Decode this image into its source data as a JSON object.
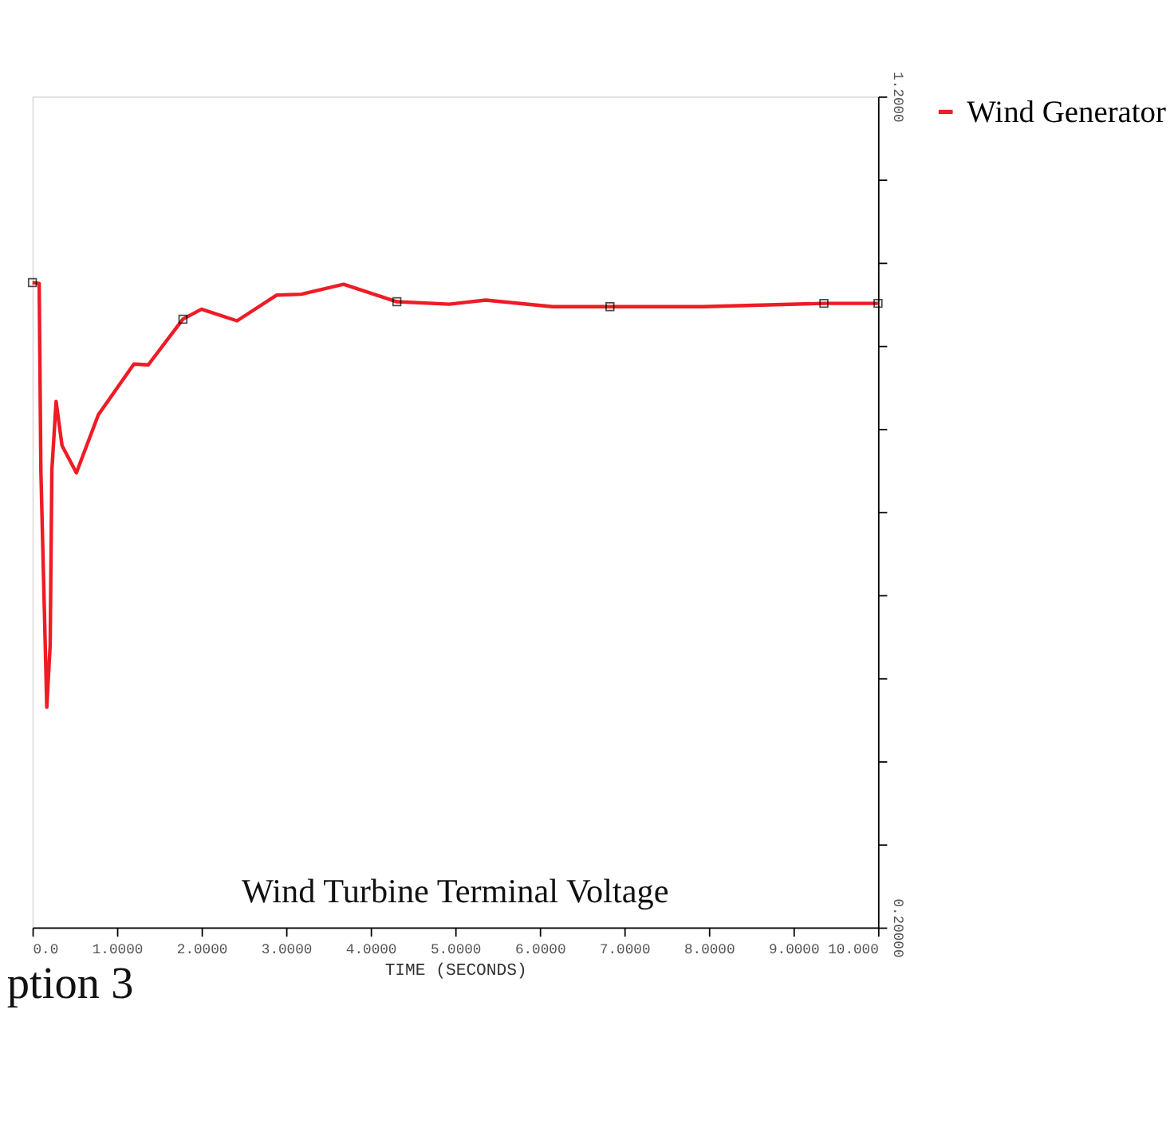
{
  "chart_data": {
    "type": "line",
    "title": "Wind Turbine Terminal Voltage",
    "xlabel": "TIME (SECONDS)",
    "annotations": [
      "ption 3"
    ],
    "xlim": [
      0,
      10
    ],
    "ylim": [
      0.2,
      1.2
    ],
    "xticks": [
      {
        "value": 0,
        "label": "0.0"
      },
      {
        "value": 1,
        "label": "1.0000"
      },
      {
        "value": 2,
        "label": "2.0000"
      },
      {
        "value": 3,
        "label": "3.0000"
      },
      {
        "value": 4,
        "label": "4.0000"
      },
      {
        "value": 5,
        "label": "5.0000"
      },
      {
        "value": 6,
        "label": "6.0000"
      },
      {
        "value": 7,
        "label": "7.0000"
      },
      {
        "value": 8,
        "label": "8.0000"
      },
      {
        "value": 9,
        "label": "9.0000"
      },
      {
        "value": 10,
        "label": "10.000"
      }
    ],
    "yticks": [
      {
        "value": 0.2,
        "label": "0.20000"
      },
      {
        "value": 0.3,
        "label": null
      },
      {
        "value": 0.4,
        "label": null
      },
      {
        "value": 0.5,
        "label": null
      },
      {
        "value": 0.6,
        "label": null
      },
      {
        "value": 0.7,
        "label": null
      },
      {
        "value": 0.8,
        "label": null
      },
      {
        "value": 0.9,
        "label": null
      },
      {
        "value": 1.0,
        "label": null
      },
      {
        "value": 1.1,
        "label": null
      },
      {
        "value": 1.2,
        "label": "1.2000"
      }
    ],
    "grid": false,
    "legend": "right",
    "marker": "none",
    "line_style": "solid",
    "series": [
      {
        "name": "Wind Generator",
        "color": "#ee1c25",
        "x": [
          0,
          0.08,
          0.1,
          0.17,
          0.21,
          0.23,
          0.28,
          0.35,
          0.52,
          0.78,
          1.2,
          1.37,
          1.78,
          2.0,
          2.42,
          2.89,
          3.18,
          3.68,
          4.31,
          4.93,
          5.36,
          6.15,
          6.83,
          7.93,
          9.36,
          10.0
        ],
        "values": [
          0.976,
          0.975,
          0.75,
          0.465,
          0.54,
          0.75,
          0.833,
          0.78,
          0.747,
          0.817,
          0.878,
          0.877,
          0.932,
          0.944,
          0.93,
          0.961,
          0.962,
          0.974,
          0.953,
          0.95,
          0.955,
          0.947,
          0.947,
          0.947,
          0.951,
          0.951
        ]
      },
      {
        "color": "#000000",
        "type": "scatter",
        "marker": "square",
        "x": [
          0,
          1.78,
          4.31,
          6.83,
          9.36,
          10.0
        ],
        "values": [
          0.976,
          0.932,
          0.953,
          0.947,
          0.951,
          0.951
        ]
      }
    ]
  }
}
